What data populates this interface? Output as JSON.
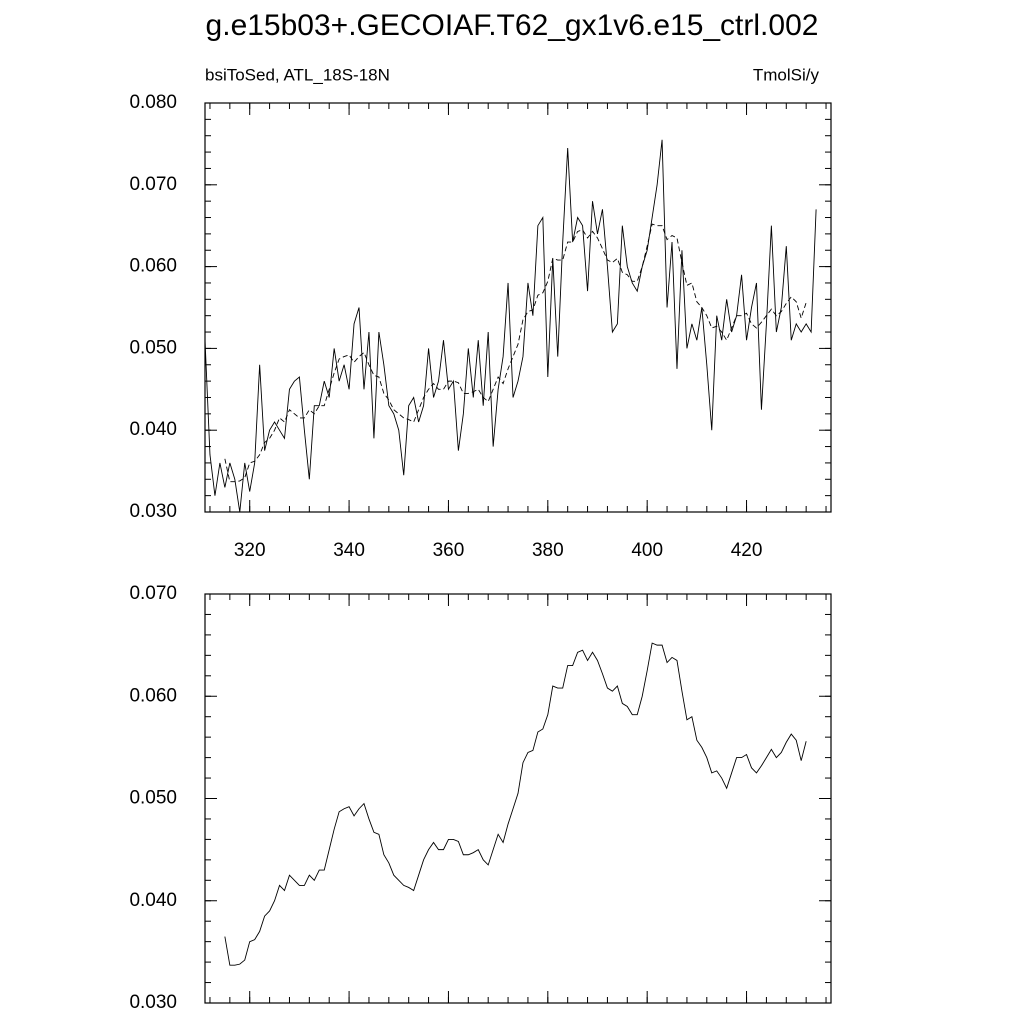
{
  "title": "g.e15b03+.GECOIAF.T62_gx1v6.e15_ctrl.002",
  "chart_data": [
    {
      "type": "line",
      "subtitle_left": "bsiToSed, ATL_18S-18N",
      "subtitle_right": "TmolSi/y",
      "xlim": [
        311,
        437
      ],
      "ylim": [
        0.03,
        0.08
      ],
      "xticks": [
        320,
        340,
        360,
        380,
        400,
        420
      ],
      "xtick_labels": true,
      "yticks": [
        {
          "value": 0.03,
          "label": "0.030"
        },
        {
          "value": 0.04,
          "label": "0.040"
        },
        {
          "value": 0.05,
          "label": "0.050"
        },
        {
          "value": 0.06,
          "label": "0.060"
        },
        {
          "value": 0.07,
          "label": "0.070"
        },
        {
          "value": 0.08,
          "label": "0.080"
        }
      ],
      "series": [
        {
          "color": "#000000",
          "dash": false,
          "x": [
            311,
            312,
            313,
            314,
            315,
            316,
            317,
            318,
            319,
            320,
            321,
            322,
            323,
            324,
            325,
            326,
            327,
            328,
            329,
            330,
            331,
            332,
            333,
            334,
            335,
            336,
            337,
            338,
            339,
            340,
            341,
            342,
            343,
            344,
            345,
            346,
            347,
            348,
            349,
            350,
            351,
            352,
            353,
            354,
            355,
            356,
            357,
            358,
            359,
            360,
            361,
            362,
            363,
            364,
            365,
            366,
            367,
            368,
            369,
            370,
            371,
            372,
            373,
            374,
            375,
            376,
            377,
            378,
            379,
            380,
            381,
            382,
            383,
            384,
            385,
            386,
            387,
            388,
            389,
            390,
            391,
            392,
            393,
            394,
            395,
            396,
            397,
            398,
            399,
            400,
            401,
            402,
            403,
            404,
            405,
            406,
            407,
            408,
            409,
            410,
            411,
            412,
            413,
            414,
            415,
            416,
            417,
            418,
            419,
            420,
            421,
            422,
            423,
            424,
            425,
            426,
            427,
            428,
            429,
            430,
            431,
            432,
            433,
            434
          ],
          "values": [
            0.051,
            0.037,
            0.032,
            0.036,
            0.033,
            0.036,
            0.034,
            0.03,
            0.036,
            0.0325,
            0.036,
            0.048,
            0.0375,
            0.04,
            0.041,
            0.04,
            0.039,
            0.045,
            0.046,
            0.0465,
            0.04,
            0.034,
            0.043,
            0.043,
            0.046,
            0.044,
            0.05,
            0.046,
            0.048,
            0.045,
            0.053,
            0.055,
            0.045,
            0.052,
            0.039,
            0.052,
            0.048,
            0.043,
            0.042,
            0.04,
            0.0345,
            0.043,
            0.044,
            0.041,
            0.043,
            0.05,
            0.044,
            0.046,
            0.051,
            0.045,
            0.046,
            0.0375,
            0.042,
            0.05,
            0.044,
            0.051,
            0.043,
            0.052,
            0.038,
            0.045,
            0.049,
            0.058,
            0.044,
            0.046,
            0.049,
            0.058,
            0.054,
            0.065,
            0.066,
            0.0465,
            0.061,
            0.049,
            0.063,
            0.0745,
            0.063,
            0.066,
            0.065,
            0.057,
            0.068,
            0.064,
            0.067,
            0.06,
            0.052,
            0.053,
            0.065,
            0.06,
            0.058,
            0.057,
            0.06,
            0.062,
            0.066,
            0.07,
            0.0755,
            0.055,
            0.063,
            0.0475,
            0.062,
            0.05,
            0.053,
            0.051,
            0.055,
            0.048,
            0.04,
            0.054,
            0.051,
            0.056,
            0.052,
            0.054,
            0.059,
            0.051,
            0.055,
            0.058,
            0.0425,
            0.053,
            0.065,
            0.052,
            0.055,
            0.0625,
            0.051,
            0.053,
            0.052,
            0.053,
            0.052,
            0.067
          ]
        },
        {
          "color": "#000000",
          "dash": true,
          "x": [
            315,
            316,
            317,
            318,
            319,
            320,
            321,
            322,
            323,
            324,
            325,
            326,
            327,
            328,
            329,
            330,
            331,
            332,
            333,
            334,
            335,
            336,
            337,
            338,
            339,
            340,
            341,
            342,
            343,
            344,
            345,
            346,
            347,
            348,
            349,
            350,
            351,
            352,
            353,
            354,
            355,
            356,
            357,
            358,
            359,
            360,
            361,
            362,
            363,
            364,
            365,
            366,
            367,
            368,
            369,
            370,
            371,
            372,
            373,
            374,
            375,
            376,
            377,
            378,
            379,
            380,
            381,
            382,
            383,
            384,
            385,
            386,
            387,
            388,
            389,
            390,
            391,
            392,
            393,
            394,
            395,
            396,
            397,
            398,
            399,
            400,
            401,
            402,
            403,
            404,
            405,
            406,
            407,
            408,
            409,
            410,
            411,
            412,
            413,
            414,
            415,
            416,
            417,
            418,
            419,
            420,
            421,
            422,
            423,
            424,
            425,
            426,
            427,
            428,
            429,
            430,
            431,
            432
          ],
          "values": [
            0.0365,
            0.0337,
            0.0337,
            0.0338,
            0.0342,
            0.036,
            0.0362,
            0.037,
            0.0385,
            0.039,
            0.04,
            0.0415,
            0.041,
            0.0425,
            0.042,
            0.0415,
            0.0415,
            0.0425,
            0.042,
            0.043,
            0.043,
            0.045,
            0.047,
            0.0487,
            0.049,
            0.0492,
            0.0483,
            0.049,
            0.0495,
            0.048,
            0.0467,
            0.0465,
            0.0445,
            0.0437,
            0.0425,
            0.042,
            0.0415,
            0.0413,
            0.041,
            0.0425,
            0.044,
            0.045,
            0.0457,
            0.045,
            0.045,
            0.046,
            0.046,
            0.0458,
            0.0445,
            0.0445,
            0.0447,
            0.045,
            0.044,
            0.0435,
            0.045,
            0.0465,
            0.0457,
            0.0475,
            0.049,
            0.0505,
            0.0535,
            0.0545,
            0.0547,
            0.0565,
            0.0568,
            0.0582,
            0.061,
            0.0608,
            0.0608,
            0.063,
            0.063,
            0.0643,
            0.0645,
            0.0635,
            0.0643,
            0.0635,
            0.0622,
            0.0608,
            0.0605,
            0.061,
            0.0593,
            0.059,
            0.0582,
            0.0582,
            0.06,
            0.0625,
            0.0652,
            0.065,
            0.065,
            0.0633,
            0.0638,
            0.0635,
            0.0605,
            0.0577,
            0.058,
            0.0557,
            0.055,
            0.054,
            0.0525,
            0.0527,
            0.052,
            0.051,
            0.0525,
            0.054,
            0.054,
            0.0543,
            0.053,
            0.0525,
            0.0532,
            0.054,
            0.0548,
            0.054,
            0.0545,
            0.0555,
            0.0563,
            0.0557,
            0.0537,
            0.0556
          ]
        }
      ]
    },
    {
      "type": "line",
      "xlim": [
        311,
        437
      ],
      "ylim": [
        0.03,
        0.07
      ],
      "xticks": [
        320,
        340,
        360,
        380,
        400,
        420
      ],
      "xtick_labels": false,
      "yticks": [
        {
          "value": 0.03,
          "label": "0.030"
        },
        {
          "value": 0.04,
          "label": "0.040"
        },
        {
          "value": 0.05,
          "label": "0.050"
        },
        {
          "value": 0.06,
          "label": "0.060"
        },
        {
          "value": 0.07,
          "label": "0.070"
        }
      ],
      "series": [
        {
          "color": "#000000",
          "dash": false,
          "x": [
            315,
            316,
            317,
            318,
            319,
            320,
            321,
            322,
            323,
            324,
            325,
            326,
            327,
            328,
            329,
            330,
            331,
            332,
            333,
            334,
            335,
            336,
            337,
            338,
            339,
            340,
            341,
            342,
            343,
            344,
            345,
            346,
            347,
            348,
            349,
            350,
            351,
            352,
            353,
            354,
            355,
            356,
            357,
            358,
            359,
            360,
            361,
            362,
            363,
            364,
            365,
            366,
            367,
            368,
            369,
            370,
            371,
            372,
            373,
            374,
            375,
            376,
            377,
            378,
            379,
            380,
            381,
            382,
            383,
            384,
            385,
            386,
            387,
            388,
            389,
            390,
            391,
            392,
            393,
            394,
            395,
            396,
            397,
            398,
            399,
            400,
            401,
            402,
            403,
            404,
            405,
            406,
            407,
            408,
            409,
            410,
            411,
            412,
            413,
            414,
            415,
            416,
            417,
            418,
            419,
            420,
            421,
            422,
            423,
            424,
            425,
            426,
            427,
            428,
            429,
            430,
            431,
            432
          ],
          "values": [
            0.0365,
            0.0337,
            0.0337,
            0.0338,
            0.0342,
            0.036,
            0.0362,
            0.037,
            0.0385,
            0.039,
            0.04,
            0.0415,
            0.041,
            0.0425,
            0.042,
            0.0415,
            0.0415,
            0.0425,
            0.042,
            0.043,
            0.043,
            0.045,
            0.047,
            0.0487,
            0.049,
            0.0492,
            0.0483,
            0.049,
            0.0495,
            0.048,
            0.0467,
            0.0465,
            0.0445,
            0.0437,
            0.0425,
            0.042,
            0.0415,
            0.0413,
            0.041,
            0.0425,
            0.044,
            0.045,
            0.0457,
            0.045,
            0.045,
            0.046,
            0.046,
            0.0458,
            0.0445,
            0.0445,
            0.0447,
            0.045,
            0.044,
            0.0435,
            0.045,
            0.0465,
            0.0457,
            0.0475,
            0.049,
            0.0505,
            0.0535,
            0.0545,
            0.0547,
            0.0565,
            0.0568,
            0.0582,
            0.061,
            0.0608,
            0.0608,
            0.063,
            0.063,
            0.0643,
            0.0645,
            0.0635,
            0.0643,
            0.0635,
            0.0622,
            0.0608,
            0.0605,
            0.061,
            0.0593,
            0.059,
            0.0582,
            0.0582,
            0.06,
            0.0625,
            0.0652,
            0.065,
            0.065,
            0.0633,
            0.0638,
            0.0635,
            0.0605,
            0.0577,
            0.058,
            0.0557,
            0.055,
            0.054,
            0.0525,
            0.0527,
            0.052,
            0.051,
            0.0525,
            0.054,
            0.054,
            0.0543,
            0.053,
            0.0525,
            0.0532,
            0.054,
            0.0548,
            0.054,
            0.0545,
            0.0555,
            0.0563,
            0.0557,
            0.0537,
            0.0556
          ]
        }
      ]
    }
  ]
}
